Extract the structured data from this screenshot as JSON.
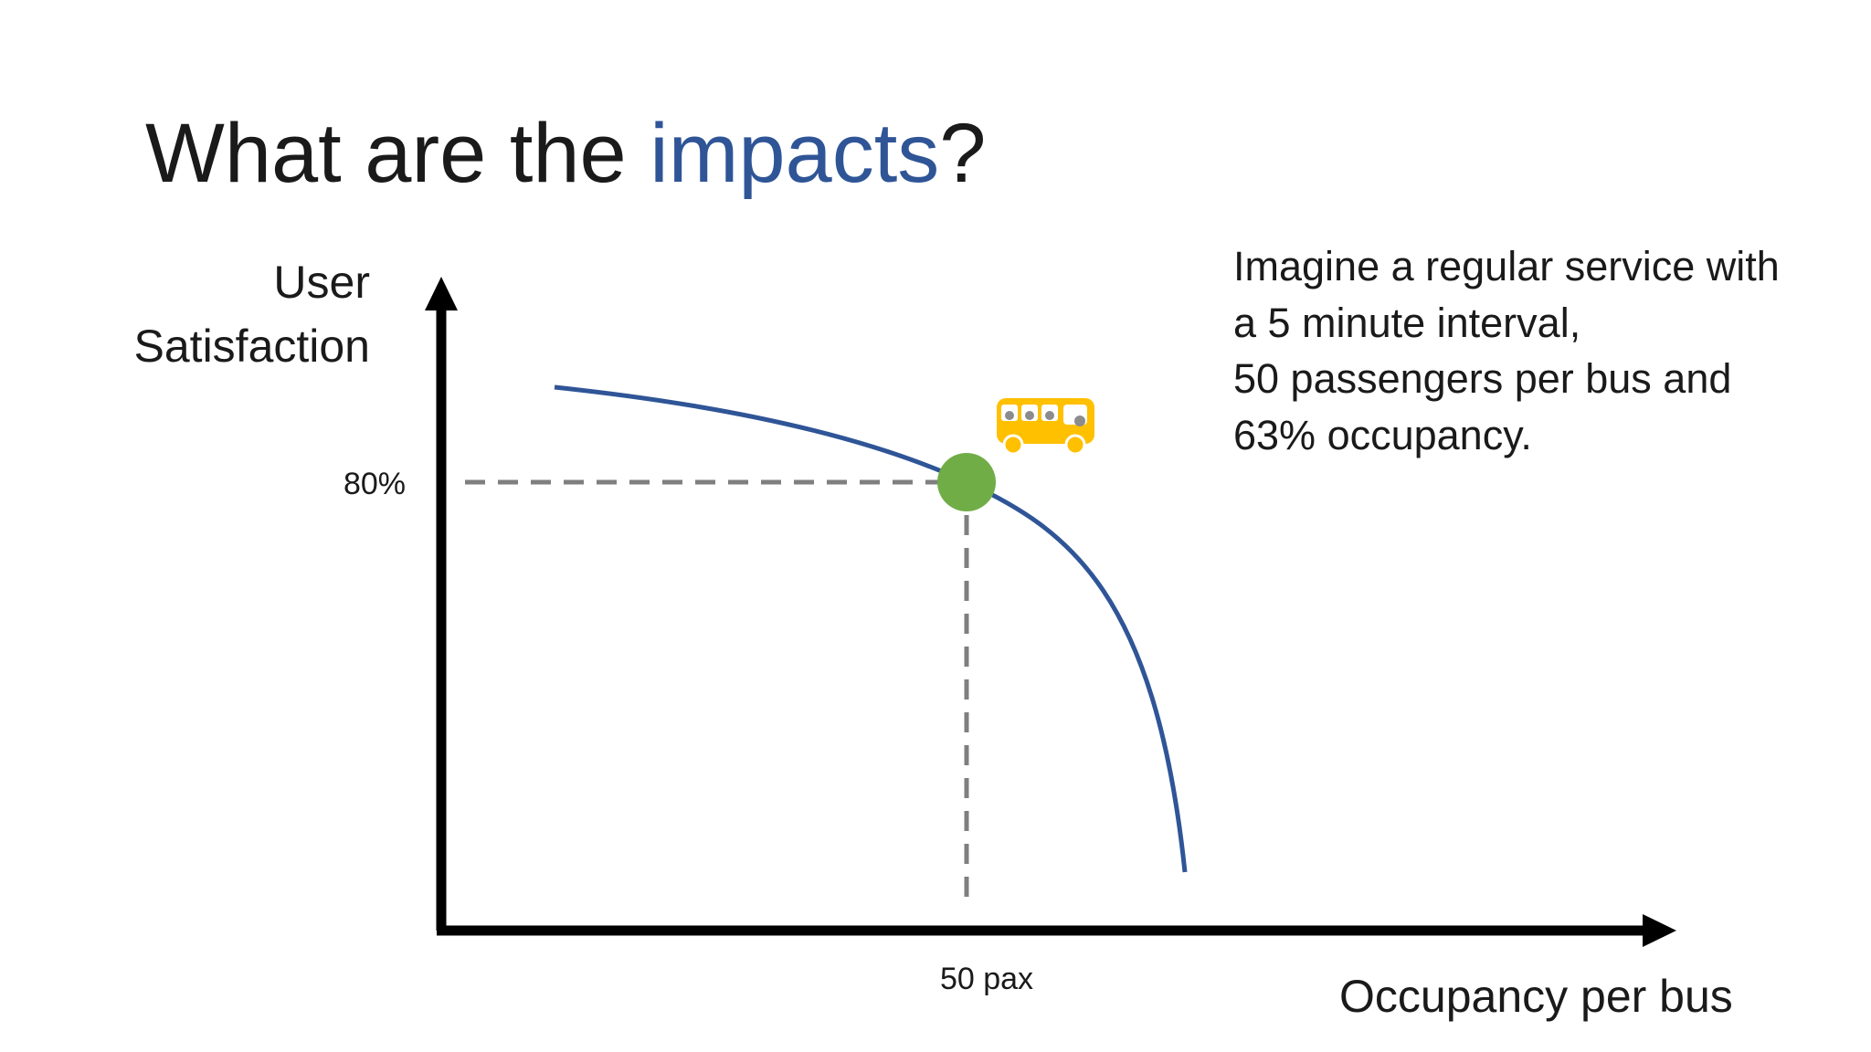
{
  "slide": {
    "title": {
      "start": "What are the ",
      "highlight": "impacts",
      "end": "?"
    },
    "diagram": {
      "y_axis_label": [
        "User",
        "Satisfaction"
      ],
      "x_axis_label": "Occupancy per bus",
      "point": {
        "y_label": "80%",
        "x_label": "50 pax"
      }
    },
    "note": [
      "Imagine a regular service with",
      "a 5 minute interval,",
      "50 passengers per bus and",
      "63% occupancy."
    ]
  }
}
